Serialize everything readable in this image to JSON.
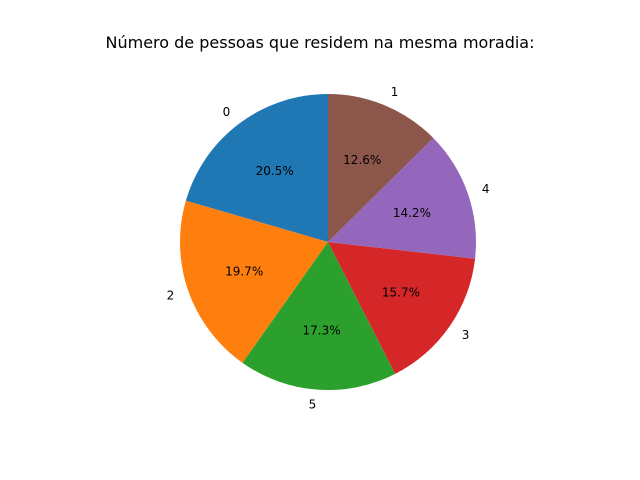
{
  "chart_data": {
    "type": "pie",
    "title": "Número de pessoas que residem na mesma moradia:",
    "start_angle_deg": 90,
    "direction": "counterclockwise",
    "slices": [
      {
        "label": "0",
        "value": 20.5,
        "pct_label": "20.5%",
        "color": "#1f77b4"
      },
      {
        "label": "2",
        "value": 19.7,
        "pct_label": "19.7%",
        "color": "#ff7f0e"
      },
      {
        "label": "5",
        "value": 17.3,
        "pct_label": "17.3%",
        "color": "#2ca02c"
      },
      {
        "label": "3",
        "value": 15.7,
        "pct_label": "15.7%",
        "color": "#d62728"
      },
      {
        "label": "4",
        "value": 14.2,
        "pct_label": "14.2%",
        "color": "#9467bd"
      },
      {
        "label": "1",
        "value": 12.6,
        "pct_label": "12.6%",
        "color": "#8c564b"
      }
    ]
  }
}
